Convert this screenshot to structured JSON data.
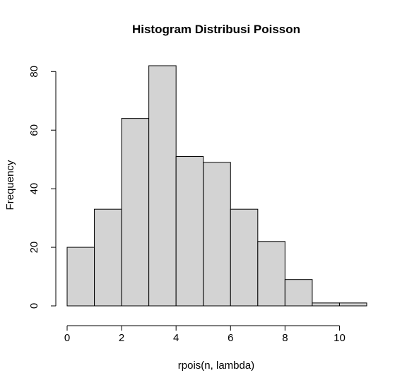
{
  "chart_data": {
    "type": "bar",
    "title": "Histogram Distribusi Poisson",
    "xlabel": "rpois(n, lambda)",
    "ylabel": "Frequency",
    "bin_edges": [
      0,
      1,
      2,
      3,
      4,
      5,
      6,
      7,
      8,
      9,
      10,
      11
    ],
    "values": [
      20,
      33,
      64,
      82,
      51,
      49,
      33,
      22,
      9,
      1,
      1
    ],
    "xlim": [
      0,
      11
    ],
    "ylim": [
      0,
      82
    ],
    "x_ticks": [
      0,
      2,
      4,
      6,
      8,
      10
    ],
    "y_ticks": [
      0,
      20,
      40,
      60,
      80
    ],
    "grid": false,
    "bar_color": "#d3d3d3",
    "edge_color": "#000000"
  }
}
